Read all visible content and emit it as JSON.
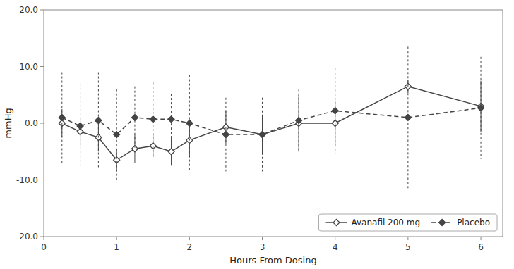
{
  "chart_data": {
    "type": "line",
    "xlabel": "Hours From Dosing",
    "ylabel": "mmHg",
    "x": [
      0.25,
      0.5,
      0.75,
      1.0,
      1.25,
      1.5,
      1.75,
      2.0,
      2.5,
      3.0,
      3.5,
      4.0,
      5.0,
      6.0
    ],
    "series": [
      {
        "name": "Avanafil 200 mg",
        "color": "#444444",
        "line_style": "solid",
        "marker": "open-diamond",
        "values": [
          0.0,
          -1.5,
          -2.5,
          -6.5,
          -4.5,
          -4.0,
          -5.0,
          -3.0,
          -0.7,
          -2.0,
          0.0,
          0.0,
          6.5,
          3.0
        ],
        "error_lower": [
          2.5,
          2.5,
          2.5,
          2.0,
          2.5,
          2.0,
          2.5,
          3.0,
          3.0,
          3.5,
          5.0,
          4.0,
          1.2,
          4.5
        ],
        "error_upper": [
          2.5,
          2.5,
          2.5,
          2.0,
          2.5,
          2.0,
          2.5,
          3.0,
          3.0,
          3.5,
          5.0,
          4.0,
          1.2,
          4.5
        ]
      },
      {
        "name": "Placebo",
        "color": "#444444",
        "line_style": "dashed",
        "marker": "diamond",
        "values": [
          1.0,
          -0.5,
          0.5,
          -2.0,
          1.0,
          0.7,
          0.7,
          0.0,
          -2.0,
          -2.0,
          0.5,
          2.2,
          1.0,
          2.7
        ],
        "error_lower": [
          8.0,
          7.5,
          8.5,
          8.0,
          5.5,
          6.5,
          4.5,
          8.5,
          6.5,
          6.5,
          5.5,
          7.5,
          12.5,
          9.0
        ],
        "error_upper": [
          8.0,
          7.5,
          8.5,
          8.0,
          5.5,
          6.5,
          4.5,
          8.5,
          6.5,
          6.5,
          5.5,
          7.5,
          12.5,
          9.0
        ]
      }
    ],
    "xlim": [
      0,
      6.3
    ],
    "ylim": [
      -20.0,
      20.0
    ],
    "xticks": [
      0,
      1,
      2,
      3,
      4,
      5,
      6
    ],
    "yticks": [
      {
        "value": -20.0,
        "label": "-20.0"
      },
      {
        "value": -10.0,
        "label": "-10.0"
      },
      {
        "value": 0.0,
        "label": "0.0"
      },
      {
        "value": 10.0,
        "label": "10.0"
      },
      {
        "value": 20.0,
        "label": "20.0"
      }
    ],
    "legend": "lower right",
    "grid": false
  }
}
